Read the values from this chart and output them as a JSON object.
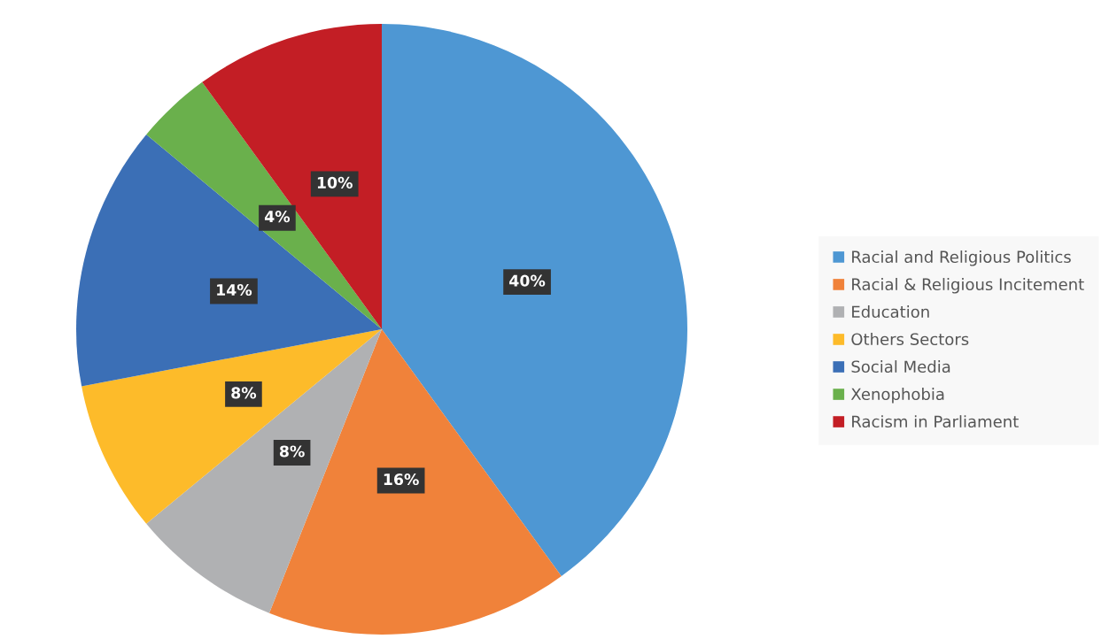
{
  "chart_data": {
    "type": "pie",
    "categories": [
      "Racial and Religious Politics",
      "Racial & Religious Incitement",
      "Education",
      "Others Sectors",
      "Social Media",
      "Xenophobia",
      "Racism in Parliament"
    ],
    "values": [
      40,
      16,
      8,
      8,
      14,
      4,
      10
    ],
    "colors": [
      "#4e97d3",
      "#f0823a",
      "#b0b1b3",
      "#fdbb2a",
      "#3b6fb6",
      "#6ab04c",
      "#c31e25"
    ],
    "value_labels": [
      "40%",
      "16%",
      "8%",
      "8%",
      "14%",
      "4%",
      "10%"
    ],
    "legend": "right"
  }
}
